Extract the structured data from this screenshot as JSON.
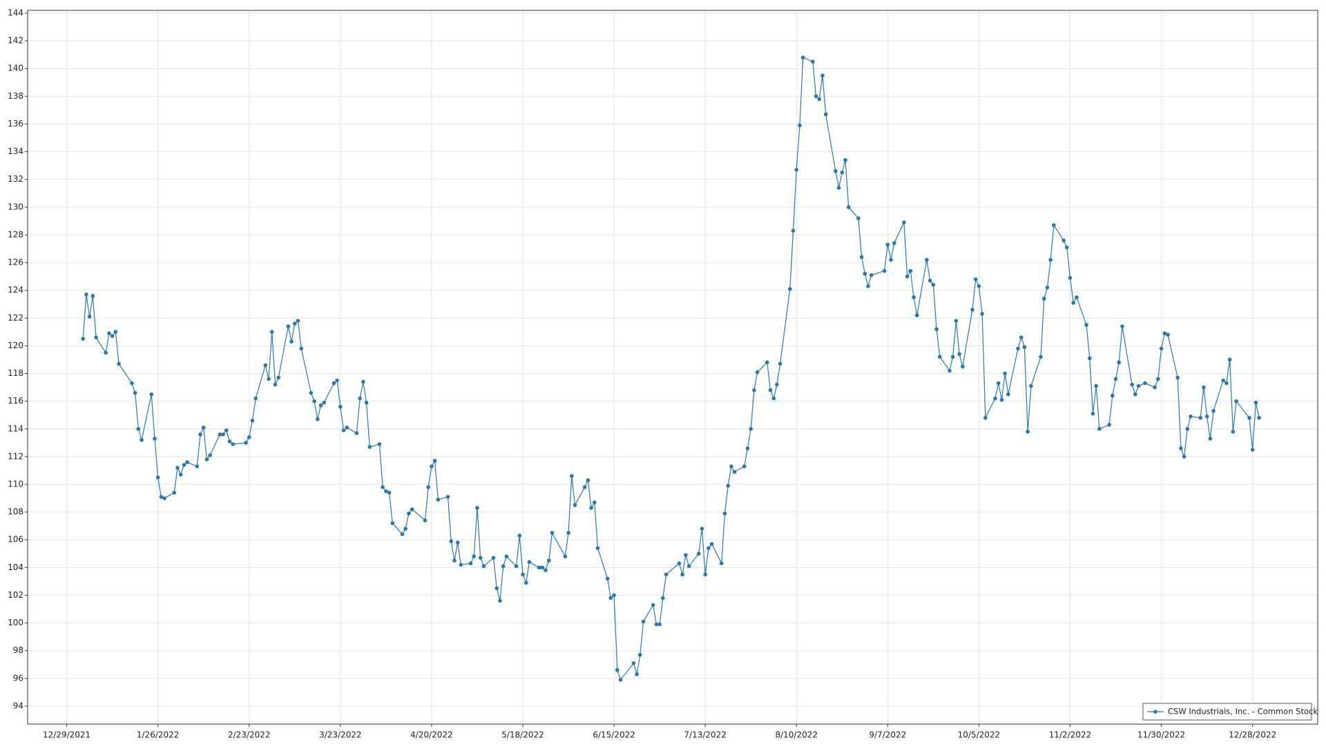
{
  "chart_data": {
    "type": "line",
    "x": [
      "1/3/2022",
      "1/4/2022",
      "1/5/2022",
      "1/6/2022",
      "1/7/2022",
      "1/10/2022",
      "1/11/2022",
      "1/12/2022",
      "1/13/2022",
      "1/14/2022",
      "1/18/2022",
      "1/19/2022",
      "1/20/2022",
      "1/21/2022",
      "1/24/2022",
      "1/25/2022",
      "1/26/2022",
      "1/27/2022",
      "1/28/2022",
      "1/31/2022",
      "2/1/2022",
      "2/2/2022",
      "2/3/2022",
      "2/4/2022",
      "2/7/2022",
      "2/8/2022",
      "2/9/2022",
      "2/10/2022",
      "2/11/2022",
      "2/14/2022",
      "2/15/2022",
      "2/16/2022",
      "2/17/2022",
      "2/18/2022",
      "2/22/2022",
      "2/23/2022",
      "2/24/2022",
      "2/25/2022",
      "2/28/2022",
      "3/1/2022",
      "3/2/2022",
      "3/3/2022",
      "3/4/2022",
      "3/7/2022",
      "3/8/2022",
      "3/9/2022",
      "3/10/2022",
      "3/11/2022",
      "3/14/2022",
      "3/15/2022",
      "3/16/2022",
      "3/17/2022",
      "3/18/2022",
      "3/21/2022",
      "3/22/2022",
      "3/23/2022",
      "3/24/2022",
      "3/25/2022",
      "3/28/2022",
      "3/29/2022",
      "3/30/2022",
      "3/31/2022",
      "4/1/2022",
      "4/4/2022",
      "4/5/2022",
      "4/6/2022",
      "4/7/2022",
      "4/8/2022",
      "4/11/2022",
      "4/12/2022",
      "4/13/2022",
      "4/14/2022",
      "4/18/2022",
      "4/19/2022",
      "4/20/2022",
      "4/21/2022",
      "4/22/2022",
      "4/25/2022",
      "4/26/2022",
      "4/27/2022",
      "4/28/2022",
      "4/29/2022",
      "5/2/2022",
      "5/3/2022",
      "5/4/2022",
      "5/5/2022",
      "5/6/2022",
      "5/9/2022",
      "5/10/2022",
      "5/11/2022",
      "5/12/2022",
      "5/13/2022",
      "5/16/2022",
      "5/17/2022",
      "5/18/2022",
      "5/19/2022",
      "5/20/2022",
      "5/23/2022",
      "5/24/2022",
      "5/25/2022",
      "5/26/2022",
      "5/27/2022",
      "5/31/2022",
      "6/1/2022",
      "6/2/2022",
      "6/3/2022",
      "6/6/2022",
      "6/7/2022",
      "6/8/2022",
      "6/9/2022",
      "6/10/2022",
      "6/13/2022",
      "6/14/2022",
      "6/15/2022",
      "6/16/2022",
      "6/17/2022",
      "6/21/2022",
      "6/22/2022",
      "6/23/2022",
      "6/24/2022",
      "6/27/2022",
      "6/28/2022",
      "6/29/2022",
      "6/30/2022",
      "7/1/2022",
      "7/5/2022",
      "7/6/2022",
      "7/7/2022",
      "7/8/2022",
      "7/11/2022",
      "7/12/2022",
      "7/13/2022",
      "7/14/2022",
      "7/15/2022",
      "7/18/2022",
      "7/19/2022",
      "7/20/2022",
      "7/21/2022",
      "7/22/2022",
      "7/25/2022",
      "7/26/2022",
      "7/27/2022",
      "7/28/2022",
      "7/29/2022",
      "8/1/2022",
      "8/2/2022",
      "8/3/2022",
      "8/4/2022",
      "8/5/2022",
      "8/8/2022",
      "8/9/2022",
      "8/10/2022",
      "8/11/2022",
      "8/12/2022",
      "8/15/2022",
      "8/16/2022",
      "8/17/2022",
      "8/18/2022",
      "8/19/2022",
      "8/22/2022",
      "8/23/2022",
      "8/24/2022",
      "8/25/2022",
      "8/26/2022",
      "8/29/2022",
      "8/30/2022",
      "8/31/2022",
      "9/1/2022",
      "9/2/2022",
      "9/6/2022",
      "9/7/2022",
      "9/8/2022",
      "9/9/2022",
      "9/12/2022",
      "9/13/2022",
      "9/14/2022",
      "9/15/2022",
      "9/16/2022",
      "9/19/2022",
      "9/20/2022",
      "9/21/2022",
      "9/22/2022",
      "9/23/2022",
      "9/26/2022",
      "9/27/2022",
      "9/28/2022",
      "9/29/2022",
      "9/30/2022",
      "10/3/2022",
      "10/4/2022",
      "10/5/2022",
      "10/6/2022",
      "10/7/2022",
      "10/10/2022",
      "10/11/2022",
      "10/12/2022",
      "10/13/2022",
      "10/14/2022",
      "10/17/2022",
      "10/18/2022",
      "10/19/2022",
      "10/20/2022",
      "10/21/2022",
      "10/24/2022",
      "10/25/2022",
      "10/26/2022",
      "10/27/2022",
      "10/28/2022",
      "10/31/2022",
      "11/1/2022",
      "11/2/2022",
      "11/3/2022",
      "11/4/2022",
      "11/7/2022",
      "11/8/2022",
      "11/9/2022",
      "11/10/2022",
      "11/11/2022",
      "11/14/2022",
      "11/15/2022",
      "11/16/2022",
      "11/17/2022",
      "11/18/2022",
      "11/21/2022",
      "11/22/2022",
      "11/23/2022",
      "11/25/2022",
      "11/28/2022",
      "11/29/2022",
      "11/30/2022",
      "12/1/2022",
      "12/2/2022",
      "12/5/2022",
      "12/6/2022",
      "12/7/2022",
      "12/8/2022",
      "12/9/2022",
      "12/12/2022",
      "12/13/2022",
      "12/14/2022",
      "12/15/2022",
      "12/16/2022",
      "12/19/2022",
      "12/20/2022",
      "12/21/2022",
      "12/22/2022",
      "12/23/2022",
      "12/27/2022",
      "12/28/2022",
      "12/29/2022",
      "12/30/2022"
    ],
    "series": [
      {
        "name": "CSW Industrials, Inc. - Common Stock",
        "color": "#2878b0",
        "values": [
          120.5,
          123.7,
          122.1,
          123.6,
          120.6,
          119.5,
          120.9,
          120.7,
          121.0,
          118.7,
          117.3,
          116.6,
          114.0,
          113.2,
          116.5,
          113.3,
          110.5,
          109.1,
          109.0,
          109.4,
          111.2,
          110.7,
          111.4,
          111.6,
          111.3,
          113.6,
          114.1,
          111.8,
          112.1,
          113.6,
          113.6,
          113.9,
          113.1,
          112.9,
          113.0,
          113.4,
          114.6,
          116.2,
          118.6,
          117.6,
          121.0,
          117.2,
          117.7,
          121.4,
          120.3,
          121.6,
          121.8,
          119.8,
          116.6,
          116.0,
          114.7,
          115.7,
          115.9,
          117.3,
          117.5,
          115.6,
          113.9,
          114.1,
          113.7,
          116.2,
          117.4,
          115.9,
          112.7,
          112.9,
          109.8,
          109.5,
          109.4,
          107.2,
          106.4,
          106.8,
          107.9,
          108.2,
          107.4,
          109.8,
          111.3,
          111.7,
          108.9,
          109.1,
          105.9,
          104.5,
          105.8,
          104.2,
          104.3,
          104.8,
          108.3,
          104.7,
          104.1,
          104.7,
          102.5,
          101.6,
          104.1,
          104.8,
          104.1,
          106.3,
          103.5,
          102.9,
          104.4,
          104.0,
          104.0,
          103.8,
          104.5,
          106.5,
          104.8,
          106.5,
          110.6,
          108.5,
          109.8,
          110.3,
          108.3,
          108.7,
          105.4,
          103.2,
          101.8,
          102.0,
          96.6,
          95.9,
          97.1,
          96.3,
          97.7,
          100.1,
          101.3,
          99.9,
          99.9,
          101.8,
          103.5,
          104.3,
          103.5,
          104.9,
          104.1,
          105.0,
          106.8,
          103.5,
          105.4,
          105.7,
          104.3,
          107.9,
          109.9,
          111.3,
          110.9,
          111.3,
          112.6,
          114.0,
          116.8,
          118.1,
          118.8,
          116.8,
          116.2,
          117.2,
          118.7,
          124.1,
          128.3,
          132.7,
          135.9,
          140.8,
          140.5,
          138.0,
          137.8,
          139.5,
          136.7,
          132.6,
          131.4,
          132.5,
          133.4,
          130.0,
          129.2,
          126.4,
          125.2,
          124.3,
          125.1,
          125.4,
          127.3,
          126.2,
          127.4,
          128.9,
          125.0,
          125.4,
          123.5,
          122.2,
          126.2,
          124.7,
          124.4,
          121.2,
          119.2,
          118.2,
          119.2,
          121.8,
          119.4,
          118.5,
          122.6,
          124.8,
          124.3,
          122.3,
          114.8,
          116.2,
          117.3,
          116.1,
          118.0,
          116.5,
          119.8,
          120.6,
          119.9,
          113.8,
          117.1,
          119.2,
          123.4,
          124.2,
          126.2,
          128.7,
          127.6,
          127.1,
          124.9,
          123.1,
          123.5,
          121.5,
          119.1,
          115.1,
          117.1,
          114.0,
          114.3,
          116.4,
          117.6,
          118.8,
          121.4,
          117.2,
          116.5,
          117.1,
          117.3,
          117.0,
          117.6,
          119.8,
          120.9,
          120.8,
          117.7,
          112.6,
          112.0,
          114.0,
          114.9,
          114.8,
          117.0,
          114.9,
          113.3,
          115.3,
          117.5,
          117.3,
          119.0,
          113.8,
          116.0,
          114.8,
          112.5,
          115.9,
          114.8
        ]
      }
    ],
    "xlim": [
      "12/17/2021",
      "1/17/2023"
    ],
    "xticks": [
      "12/29/2021",
      "1/26/2022",
      "2/23/2022",
      "3/23/2022",
      "4/20/2022",
      "5/18/2022",
      "6/15/2022",
      "7/13/2022",
      "8/10/2022",
      "9/7/2022",
      "10/5/2022",
      "11/2/2022",
      "11/30/2022",
      "12/28/2022"
    ],
    "ylim": [
      92.7,
      144.2
    ],
    "yticks": [
      94,
      96,
      98,
      100,
      102,
      104,
      106,
      108,
      110,
      112,
      114,
      116,
      118,
      120,
      122,
      124,
      126,
      128,
      130,
      132,
      134,
      136,
      138,
      140,
      142,
      144
    ],
    "grid": true,
    "legend": "lower right"
  }
}
